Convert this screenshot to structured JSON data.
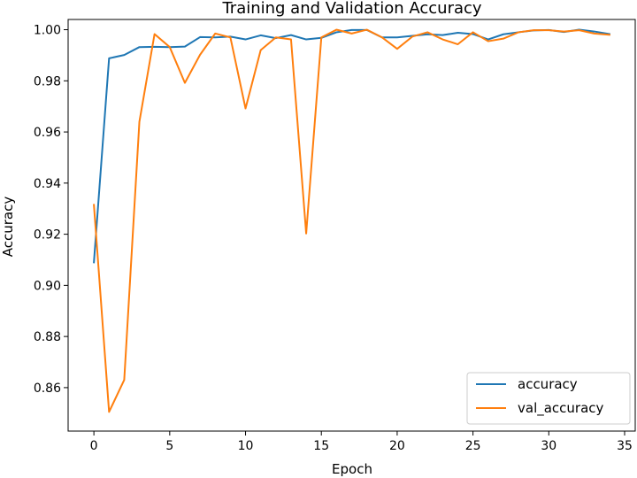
{
  "chart_data": {
    "type": "line",
    "title": "Training and Validation Accuracy",
    "xlabel": "Epoch",
    "ylabel": "Accuracy",
    "xlim": [
      -1.7,
      35.7
    ],
    "ylim": [
      0.843,
      1.004
    ],
    "xticks": [
      0,
      5,
      10,
      15,
      20,
      25,
      30,
      35
    ],
    "xtick_labels": [
      "0",
      "5",
      "10",
      "15",
      "20",
      "25",
      "30",
      "35"
    ],
    "yticks": [
      0.86,
      0.88,
      0.9,
      0.92,
      0.94,
      0.96,
      0.98,
      1.0
    ],
    "ytick_labels": [
      "0.86",
      "0.88",
      "0.90",
      "0.92",
      "0.94",
      "0.96",
      "0.98",
      "1.00"
    ],
    "grid": false,
    "legend_position": "lower right",
    "x": [
      0,
      1,
      2,
      3,
      4,
      5,
      6,
      7,
      8,
      9,
      10,
      11,
      12,
      13,
      14,
      15,
      16,
      17,
      18,
      19,
      20,
      21,
      22,
      23,
      24,
      25,
      26,
      27,
      28,
      29,
      30,
      31,
      32,
      33,
      34
    ],
    "series": [
      {
        "name": "accuracy",
        "color": "#1f77b4",
        "values": [
          0.909,
          0.9888,
          0.9901,
          0.9932,
          0.9933,
          0.9932,
          0.9934,
          0.9971,
          0.997,
          0.9973,
          0.9962,
          0.9978,
          0.9967,
          0.9979,
          0.9962,
          0.9968,
          0.999,
          0.9999,
          0.9999,
          0.997,
          0.997,
          0.9976,
          0.9982,
          0.9979,
          0.9988,
          0.9983,
          0.9962,
          0.9982,
          0.999,
          0.9997,
          0.9999,
          0.9991,
          1.0,
          0.9993,
          0.9983
        ]
      },
      {
        "name": "val_accuracy",
        "color": "#ff7f0e",
        "values": [
          0.9315,
          0.8505,
          0.863,
          0.964,
          0.9983,
          0.9932,
          0.9792,
          0.9902,
          0.9985,
          0.997,
          0.9692,
          0.992,
          0.997,
          0.9962,
          0.9203,
          0.997,
          1.0,
          0.9985,
          1.0,
          0.997,
          0.9925,
          0.9973,
          0.999,
          0.9962,
          0.9943,
          0.999,
          0.9955,
          0.9965,
          0.999,
          0.9998,
          0.9998,
          0.9993,
          0.9998,
          0.9985,
          0.998
        ]
      }
    ]
  }
}
